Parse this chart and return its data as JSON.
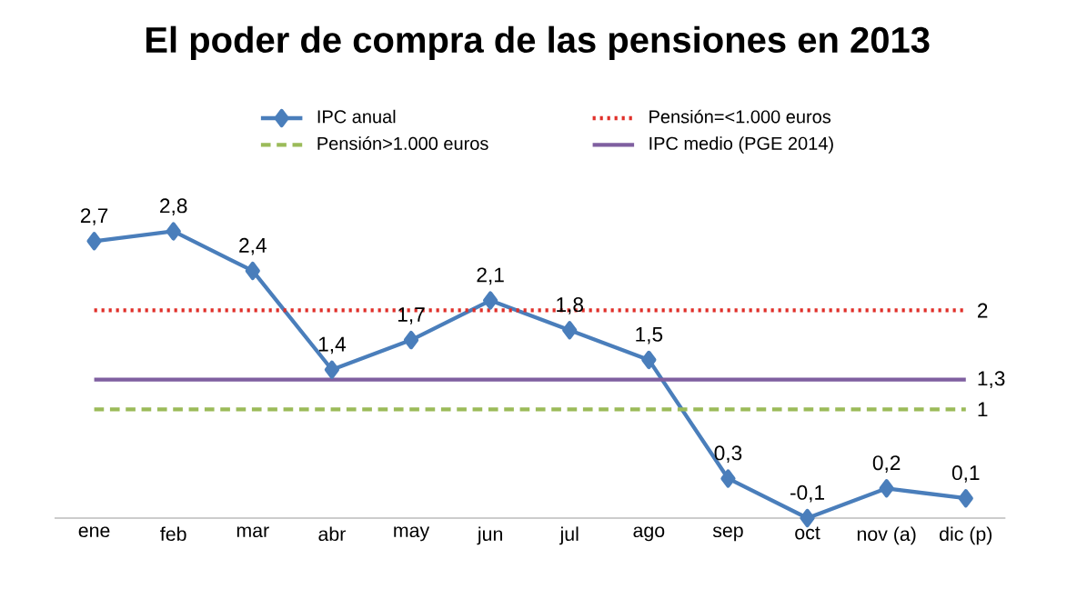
{
  "chart_data": {
    "type": "line",
    "title": "El poder de compra de las pensiones en 2013",
    "categories": [
      "ene",
      "feb",
      "mar",
      "abr",
      "may",
      "jun",
      "jul",
      "ago",
      "sep",
      "oct",
      "nov (a)",
      "dic (p)"
    ],
    "series": [
      {
        "name": "IPC anual",
        "color": "#4a7ebb",
        "marker": "diamond",
        "line_style": "solid",
        "values": [
          2.7,
          2.8,
          2.4,
          1.4,
          1.7,
          2.1,
          1.8,
          1.5,
          0.3,
          -0.1,
          0.2,
          0.1
        ],
        "value_labels": [
          "2,7",
          "2,8",
          "2,4",
          "1,4",
          "1,7",
          "2,1",
          "1,8",
          "1,5",
          "0,3",
          "-0,1",
          "0,2",
          "0,1"
        ]
      },
      {
        "name": "Pensión=<1.000 euros",
        "color": "#e0302a",
        "marker": "none",
        "line_style": "dotted",
        "values": [
          2,
          2,
          2,
          2,
          2,
          2,
          2,
          2,
          2,
          2,
          2,
          2
        ],
        "value_labels": [
          null,
          null,
          null,
          null,
          null,
          null,
          null,
          null,
          null,
          null,
          null,
          "2"
        ]
      },
      {
        "name": "Pensión>1.000 euros",
        "color": "#9bbb59",
        "marker": "none",
        "line_style": "dashed",
        "values": [
          1,
          1,
          1,
          1,
          1,
          1,
          1,
          1,
          1,
          1,
          1,
          1
        ],
        "value_labels": [
          null,
          null,
          null,
          null,
          null,
          null,
          null,
          null,
          null,
          null,
          null,
          "1"
        ]
      },
      {
        "name": "IPC medio (PGE 2014)",
        "color": "#7f5fa0",
        "marker": "none",
        "line_style": "solid",
        "values": [
          1.3,
          1.3,
          1.3,
          1.3,
          1.3,
          1.3,
          1.3,
          1.3,
          1.3,
          1.3,
          1.3,
          1.3
        ],
        "value_labels": [
          null,
          null,
          null,
          null,
          null,
          null,
          null,
          null,
          null,
          null,
          null,
          "1,3"
        ]
      }
    ],
    "legend": "top"
  }
}
